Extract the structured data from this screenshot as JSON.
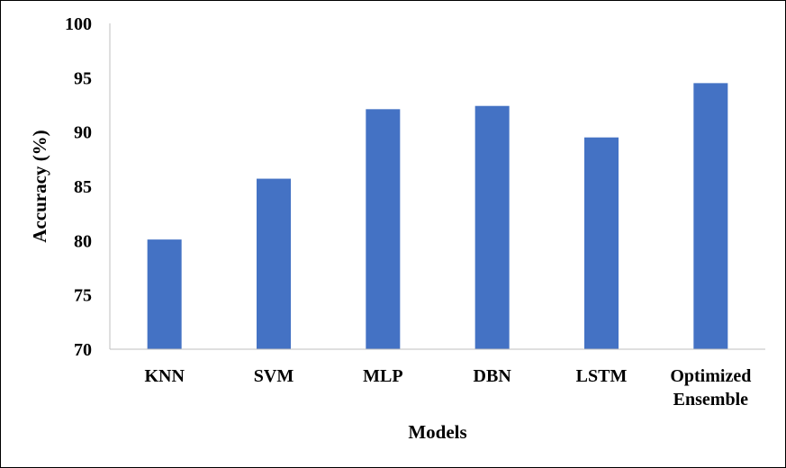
{
  "chart_data": {
    "type": "bar",
    "title": "",
    "xlabel": "Models",
    "ylabel": "Accuracy (%)",
    "categories": [
      "KNN",
      "SVM",
      "MLP",
      "DBN",
      "LSTM",
      "Optimized Ensemble"
    ],
    "category_lines": [
      [
        "KNN"
      ],
      [
        "SVM"
      ],
      [
        "MLP"
      ],
      [
        "DBN"
      ],
      [
        "LSTM"
      ],
      [
        "Optimized",
        "Ensemble"
      ]
    ],
    "series": [
      {
        "values": [
          80.1,
          85.7,
          92.1,
          92.4,
          89.5,
          94.5
        ]
      }
    ],
    "ylim": [
      70,
      100
    ],
    "yticks": [
      "70",
      "75",
      "80",
      "85",
      "90",
      "95",
      "100"
    ],
    "grid": false,
    "legend": "none",
    "bar_color": "#4472C4"
  }
}
